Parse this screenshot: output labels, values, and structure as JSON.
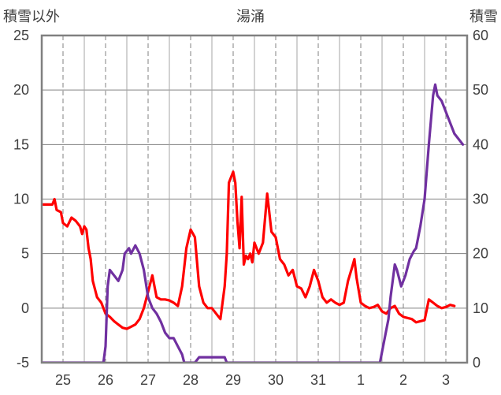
{
  "chart_data": {
    "type": "line",
    "title": "湯涌",
    "y_left_label": "積雪以外",
    "y_right_label": "積雪",
    "y_left_ticks": [
      "25",
      "20",
      "15",
      "10",
      "5",
      "0",
      "-5"
    ],
    "y_right_ticks": [
      "60",
      "50",
      "40",
      "30",
      "20",
      "10",
      "0"
    ],
    "y_left_range": [
      -5,
      25
    ],
    "y_right_range": [
      0,
      60
    ],
    "x_tick_labels": [
      "25",
      "26",
      "27",
      "28",
      "29",
      "30",
      "31",
      "1",
      "2",
      "3"
    ],
    "x_range_days": [
      -0.5,
      9.5
    ],
    "grid": "solid lines on left-axis major ticks, dashed vertical lines at each day",
    "colors": {
      "series_left": "#ff0000",
      "series_right": "#7030a0",
      "frame": "#808080"
    },
    "series": [
      {
        "axis": "left",
        "color": "#ff0000",
        "points": [
          [
            -0.5,
            9.5
          ],
          [
            -0.25,
            9.5
          ],
          [
            -0.2,
            10.0
          ],
          [
            -0.15,
            9.0
          ],
          [
            -0.05,
            8.8
          ],
          [
            0.0,
            7.8
          ],
          [
            0.1,
            7.5
          ],
          [
            0.2,
            8.3
          ],
          [
            0.3,
            8.0
          ],
          [
            0.4,
            7.5
          ],
          [
            0.45,
            6.8
          ],
          [
            0.5,
            7.5
          ],
          [
            0.55,
            7.2
          ],
          [
            0.6,
            5.5
          ],
          [
            0.65,
            4.5
          ],
          [
            0.7,
            2.5
          ],
          [
            0.8,
            1.0
          ],
          [
            0.9,
            0.5
          ],
          [
            1.0,
            -0.5
          ],
          [
            1.1,
            -0.8
          ],
          [
            1.2,
            -1.2
          ],
          [
            1.3,
            -1.5
          ],
          [
            1.4,
            -1.8
          ],
          [
            1.5,
            -1.9
          ],
          [
            1.6,
            -1.7
          ],
          [
            1.7,
            -1.5
          ],
          [
            1.8,
            -1.0
          ],
          [
            1.9,
            0.0
          ],
          [
            2.0,
            1.5
          ],
          [
            2.1,
            3.0
          ],
          [
            2.2,
            1.0
          ],
          [
            2.3,
            0.8
          ],
          [
            2.4,
            0.8
          ],
          [
            2.5,
            0.7
          ],
          [
            2.6,
            0.5
          ],
          [
            2.7,
            0.2
          ],
          [
            2.8,
            2.0
          ],
          [
            2.9,
            5.5
          ],
          [
            3.0,
            7.2
          ],
          [
            3.1,
            6.5
          ],
          [
            3.2,
            2.0
          ],
          [
            3.3,
            0.5
          ],
          [
            3.4,
            0.0
          ],
          [
            3.5,
            0.0
          ],
          [
            3.6,
            -0.5
          ],
          [
            3.7,
            -1.0
          ],
          [
            3.75,
            0.5
          ],
          [
            3.8,
            2.0
          ],
          [
            3.85,
            5.0
          ],
          [
            3.9,
            11.5
          ],
          [
            4.0,
            12.5
          ],
          [
            4.05,
            11.5
          ],
          [
            4.1,
            8.0
          ],
          [
            4.15,
            5.5
          ],
          [
            4.2,
            10.2
          ],
          [
            4.25,
            4.0
          ],
          [
            4.3,
            4.8
          ],
          [
            4.35,
            4.5
          ],
          [
            4.4,
            5.0
          ],
          [
            4.45,
            4.2
          ],
          [
            4.5,
            6.0
          ],
          [
            4.6,
            5.0
          ],
          [
            4.7,
            6.0
          ],
          [
            4.8,
            10.5
          ],
          [
            4.9,
            7.0
          ],
          [
            5.0,
            6.5
          ],
          [
            5.1,
            4.5
          ],
          [
            5.2,
            4.0
          ],
          [
            5.3,
            3.0
          ],
          [
            5.4,
            3.5
          ],
          [
            5.5,
            2.0
          ],
          [
            5.6,
            1.8
          ],
          [
            5.7,
            1.0
          ],
          [
            5.8,
            2.0
          ],
          [
            5.9,
            3.5
          ],
          [
            6.0,
            2.5
          ],
          [
            6.1,
            1.0
          ],
          [
            6.2,
            0.5
          ],
          [
            6.3,
            0.8
          ],
          [
            6.4,
            0.5
          ],
          [
            6.5,
            0.3
          ],
          [
            6.6,
            0.5
          ],
          [
            6.7,
            2.5
          ],
          [
            6.8,
            3.8
          ],
          [
            6.85,
            4.5
          ],
          [
            6.9,
            2.8
          ],
          [
            7.0,
            0.5
          ],
          [
            7.1,
            0.2
          ],
          [
            7.2,
            0.0
          ],
          [
            7.3,
            0.1
          ],
          [
            7.4,
            0.3
          ],
          [
            7.5,
            -0.3
          ],
          [
            7.6,
            -0.5
          ],
          [
            7.7,
            0.0
          ],
          [
            7.8,
            0.2
          ],
          [
            7.9,
            -0.5
          ],
          [
            8.0,
            -0.8
          ],
          [
            8.1,
            -0.9
          ],
          [
            8.2,
            -1.0
          ],
          [
            8.3,
            -1.3
          ],
          [
            8.4,
            -1.2
          ],
          [
            8.5,
            -1.1
          ],
          [
            8.6,
            0.8
          ],
          [
            8.7,
            0.5
          ],
          [
            8.8,
            0.2
          ],
          [
            8.9,
            0.0
          ],
          [
            9.0,
            0.1
          ],
          [
            9.1,
            0.3
          ],
          [
            9.2,
            0.2
          ]
        ]
      },
      {
        "axis": "right",
        "color": "#7030a0",
        "points": [
          [
            -0.5,
            0
          ],
          [
            0.95,
            0
          ],
          [
            1.0,
            3
          ],
          [
            1.05,
            14
          ],
          [
            1.1,
            17
          ],
          [
            1.2,
            16
          ],
          [
            1.3,
            15
          ],
          [
            1.4,
            17
          ],
          [
            1.45,
            20
          ],
          [
            1.55,
            21
          ],
          [
            1.6,
            20
          ],
          [
            1.7,
            21.5
          ],
          [
            1.8,
            20
          ],
          [
            1.9,
            17
          ],
          [
            2.0,
            12
          ],
          [
            2.1,
            10
          ],
          [
            2.2,
            9
          ],
          [
            2.3,
            7.5
          ],
          [
            2.4,
            5.5
          ],
          [
            2.5,
            4.5
          ],
          [
            2.6,
            4.5
          ],
          [
            2.7,
            3
          ],
          [
            2.8,
            1.5
          ],
          [
            2.85,
            0
          ],
          [
            3.0,
            0
          ],
          [
            3.1,
            0
          ],
          [
            3.2,
            1
          ],
          [
            3.8,
            1
          ],
          [
            3.85,
            0
          ],
          [
            7.45,
            0
          ],
          [
            7.55,
            4
          ],
          [
            7.65,
            8
          ],
          [
            7.7,
            12
          ],
          [
            7.8,
            18
          ],
          [
            7.85,
            17
          ],
          [
            7.95,
            14
          ],
          [
            8.05,
            16
          ],
          [
            8.15,
            19
          ],
          [
            8.25,
            20.5
          ],
          [
            8.3,
            21
          ],
          [
            8.4,
            25
          ],
          [
            8.5,
            30
          ],
          [
            8.55,
            35
          ],
          [
            8.6,
            40
          ],
          [
            8.7,
            49
          ],
          [
            8.75,
            51
          ],
          [
            8.8,
            49
          ],
          [
            8.9,
            48
          ],
          [
            9.0,
            46
          ],
          [
            9.1,
            44
          ],
          [
            9.2,
            42
          ],
          [
            9.3,
            41
          ],
          [
            9.4,
            40
          ]
        ]
      }
    ]
  }
}
